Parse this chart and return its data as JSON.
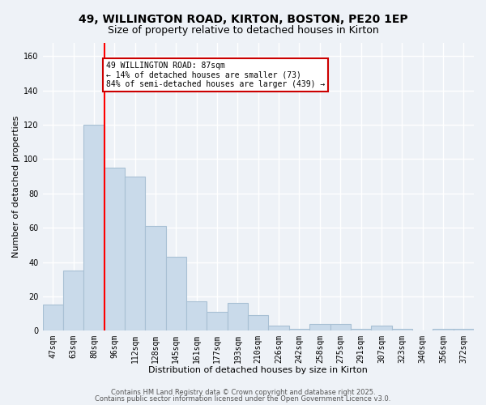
{
  "title_line1": "49, WILLINGTON ROAD, KIRTON, BOSTON, PE20 1EP",
  "title_line2": "Size of property relative to detached houses in Kirton",
  "xlabel": "Distribution of detached houses by size in Kirton",
  "ylabel": "Number of detached properties",
  "categories": [
    "47sqm",
    "63sqm",
    "80sqm",
    "96sqm",
    "112sqm",
    "128sqm",
    "145sqm",
    "161sqm",
    "177sqm",
    "193sqm",
    "210sqm",
    "226sqm",
    "242sqm",
    "258sqm",
    "275sqm",
    "291sqm",
    "307sqm",
    "323sqm",
    "340sqm",
    "356sqm",
    "372sqm"
  ],
  "values": [
    15,
    35,
    120,
    95,
    90,
    61,
    43,
    17,
    11,
    16,
    9,
    3,
    1,
    4,
    4,
    1,
    3,
    1,
    0,
    1,
    1
  ],
  "bar_color": "#c9daea",
  "bar_edgecolor": "#a8c0d4",
  "red_line_index": 2,
  "ylim": [
    0,
    168
  ],
  "yticks": [
    0,
    20,
    40,
    60,
    80,
    100,
    120,
    140,
    160
  ],
  "annotation_text": "49 WILLINGTON ROAD: 87sqm\n← 14% of detached houses are smaller (73)\n84% of semi-detached houses are larger (439) →",
  "annotation_box_facecolor": "#ffffff",
  "annotation_box_edgecolor": "#cc0000",
  "footer_line1": "Contains HM Land Registry data © Crown copyright and database right 2025.",
  "footer_line2": "Contains public sector information licensed under the Open Government Licence v3.0.",
  "background_color": "#eef2f7",
  "grid_color": "#ffffff",
  "title1_fontsize": 10,
  "title2_fontsize": 9,
  "tick_fontsize": 7,
  "label_fontsize": 8,
  "annot_fontsize": 7,
  "footer_fontsize": 6
}
